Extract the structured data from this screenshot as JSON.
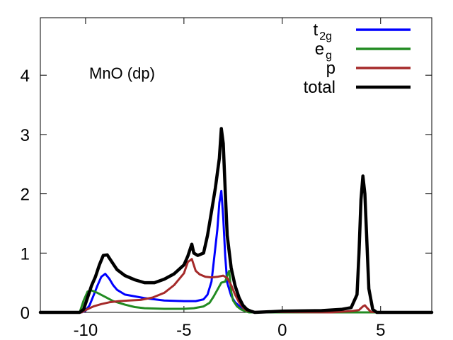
{
  "chart_data": {
    "type": "line",
    "title": "MnO (dp)",
    "xlabel": "",
    "ylabel": "",
    "xlim": [
      -12.3,
      7.6
    ],
    "ylim": [
      0,
      4.97
    ],
    "grid": false,
    "legend_position": "top-right",
    "x_ticks": [
      {
        "value": -10,
        "label": "-10"
      },
      {
        "value": -5,
        "label": "-5"
      },
      {
        "value": 0,
        "label": "0"
      },
      {
        "value": 5,
        "label": "5"
      }
    ],
    "y_ticks": [
      {
        "value": 0,
        "label": "0"
      },
      {
        "value": 1,
        "label": "1"
      },
      {
        "value": 2,
        "label": "2"
      },
      {
        "value": 3,
        "label": "3"
      },
      {
        "value": 4,
        "label": "4"
      }
    ],
    "series": [
      {
        "name": "t2g",
        "legend_main": "t",
        "legend_sub": "2g",
        "color": "#0000ff",
        "x": [
          -12.3,
          -10.2,
          -10.0,
          -9.8,
          -9.6,
          -9.4,
          -9.2,
          -9.0,
          -8.8,
          -8.6,
          -8.4,
          -8.0,
          -7.0,
          -6.0,
          -5.0,
          -4.4,
          -4.0,
          -3.8,
          -3.6,
          -3.5,
          -3.3,
          -3.2,
          -3.1,
          -3.0,
          -2.9,
          -2.8,
          -2.6,
          -2.4,
          -2.2,
          -2.0,
          -1.8,
          -1.6,
          7.6
        ],
        "y": [
          0,
          0,
          0.03,
          0.12,
          0.28,
          0.45,
          0.6,
          0.65,
          0.57,
          0.46,
          0.38,
          0.3,
          0.24,
          0.2,
          0.19,
          0.19,
          0.22,
          0.3,
          0.52,
          0.8,
          1.4,
          1.85,
          2.05,
          1.6,
          0.95,
          0.5,
          0.28,
          0.17,
          0.11,
          0.06,
          0.02,
          0,
          0
        ]
      },
      {
        "name": "eg",
        "legend_main": "e",
        "legend_sub": "g",
        "color": "#228b22",
        "x": [
          -12.3,
          -10.3,
          -10.1,
          -9.9,
          -9.7,
          -9.4,
          -9.0,
          -8.6,
          -8.0,
          -7.5,
          -7.0,
          -6.0,
          -5.0,
          -4.5,
          -4.0,
          -3.7,
          -3.5,
          -3.3,
          -3.1,
          -2.9,
          -2.8,
          -2.7,
          -2.6,
          -2.5,
          -2.3,
          -2.1,
          -1.9,
          -1.7,
          7.6
        ],
        "y": [
          0,
          0,
          0.2,
          0.35,
          0.37,
          0.33,
          0.26,
          0.19,
          0.13,
          0.09,
          0.07,
          0.06,
          0.06,
          0.07,
          0.1,
          0.16,
          0.26,
          0.38,
          0.5,
          0.52,
          0.62,
          0.7,
          0.35,
          0.2,
          0.1,
          0.05,
          0.02,
          0,
          0
        ]
      },
      {
        "name": "p",
        "legend_main": "p",
        "legend_sub": "",
        "color": "#a52a2a",
        "x": [
          -12.3,
          -10.2,
          -10.0,
          -9.6,
          -9.2,
          -8.8,
          -8.3,
          -7.8,
          -7.2,
          -6.6,
          -6.0,
          -5.5,
          -5.0,
          -4.8,
          -4.6,
          -4.4,
          -4.2,
          -3.9,
          -3.6,
          -3.3,
          -3.0,
          -2.8,
          -2.6,
          -2.4,
          -2.2,
          -2.0,
          -1.8,
          -1.5,
          2.5,
          3.5,
          3.9,
          4.1,
          4.2,
          4.3,
          4.5,
          5.0,
          7.6
        ],
        "y": [
          0,
          0,
          0.04,
          0.1,
          0.14,
          0.17,
          0.19,
          0.2,
          0.21,
          0.25,
          0.33,
          0.46,
          0.66,
          0.85,
          0.9,
          0.7,
          0.64,
          0.6,
          0.59,
          0.6,
          0.62,
          0.58,
          0.46,
          0.3,
          0.17,
          0.08,
          0.03,
          0.01,
          0.0,
          0.02,
          0.04,
          0.1,
          0.12,
          0.08,
          0.01,
          0,
          0
        ]
      },
      {
        "name": "total",
        "legend_main": "total",
        "legend_sub": "",
        "color": "#000000",
        "x": [
          -12.3,
          -10.3,
          -10.1,
          -9.9,
          -9.7,
          -9.5,
          -9.3,
          -9.1,
          -8.9,
          -8.7,
          -8.4,
          -8.0,
          -7.5,
          -7.0,
          -6.5,
          -6.0,
          -5.5,
          -5.0,
          -4.8,
          -4.6,
          -4.5,
          -4.3,
          -4.0,
          -3.8,
          -3.6,
          -3.4,
          -3.2,
          -3.1,
          -3.0,
          -2.9,
          -2.8,
          -2.6,
          -2.4,
          -2.2,
          -2.0,
          -1.8,
          -1.6,
          -1.4,
          0.0,
          2.0,
          3.0,
          3.5,
          3.8,
          3.9,
          4.0,
          4.1,
          4.2,
          4.3,
          4.4,
          4.6,
          4.8,
          7.6
        ],
        "y": [
          0,
          0,
          0.05,
          0.25,
          0.45,
          0.6,
          0.8,
          0.96,
          0.97,
          0.87,
          0.72,
          0.62,
          0.55,
          0.5,
          0.5,
          0.56,
          0.65,
          0.8,
          0.95,
          1.15,
          1.0,
          0.96,
          1.0,
          1.3,
          1.7,
          2.1,
          2.6,
          3.1,
          2.85,
          2.05,
          1.3,
          0.75,
          0.45,
          0.25,
          0.12,
          0.05,
          0.02,
          0,
          0.02,
          0.03,
          0.05,
          0.08,
          0.3,
          1.0,
          1.9,
          2.3,
          2.0,
          1.2,
          0.4,
          0.05,
          0,
          0
        ]
      }
    ]
  }
}
